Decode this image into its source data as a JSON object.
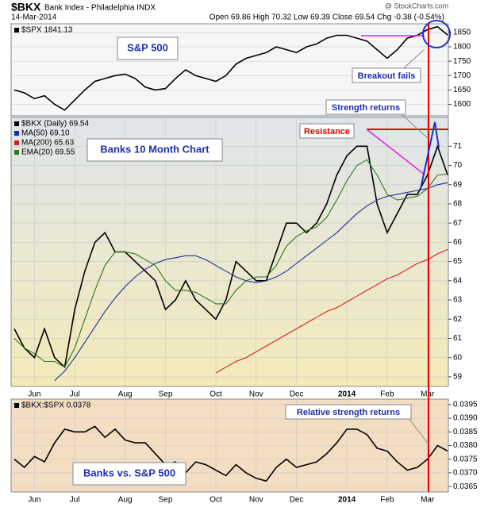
{
  "header": {
    "symbol": "$BKX",
    "name": "Bank Index - Philadelphia INDX",
    "date": "14-Mar-2014",
    "quote": "Open 69.86  High 70.32  Low 69.39  Close 69.54  Chg -0.38 (-0.54%)",
    "source": "@ StockCharts.com"
  },
  "chart_data": [
    {
      "type": "line",
      "ylim": [
        1560,
        1880
      ],
      "yticks": [
        1600,
        1650,
        1700,
        1750,
        1800,
        1850
      ],
      "series": [
        {
          "name": "$SPX 1841.13",
          "color": "#000000",
          "values": [
            1650,
            1640,
            1620,
            1630,
            1600,
            1580,
            1615,
            1650,
            1680,
            1690,
            1700,
            1705,
            1690,
            1660,
            1650,
            1655,
            1690,
            1720,
            1700,
            1690,
            1680,
            1700,
            1740,
            1760,
            1770,
            1780,
            1800,
            1790,
            1780,
            1800,
            1810,
            1830,
            1840,
            1840,
            1830,
            1820,
            1790,
            1760,
            1790,
            1830,
            1840,
            1860,
            1870,
            1841.13
          ]
        }
      ],
      "annotations": [
        "S&P 500",
        "Breakout fails"
      ]
    },
    {
      "type": "line",
      "ylim": [
        58.5,
        72.5
      ],
      "yticks": [
        59,
        60,
        61,
        62,
        63,
        64,
        65,
        66,
        67,
        68,
        69,
        70,
        71
      ],
      "categories": [
        null,
        null,
        "Jun",
        null,
        null,
        null,
        "Jul",
        null,
        null,
        null,
        null,
        "Aug",
        null,
        null,
        null,
        "Sep",
        null,
        null,
        null,
        null,
        "Oct",
        null,
        null,
        null,
        "Nov",
        null,
        null,
        null,
        "Dec",
        null,
        null,
        null,
        null,
        "2014",
        null,
        null,
        null,
        "Feb",
        null,
        null,
        null,
        "Mar",
        null,
        null
      ],
      "series": [
        {
          "name": "$BKX (Daily) 69.54",
          "color": "#000000",
          "values": [
            61.5,
            60.5,
            60,
            61.5,
            60,
            59.5,
            62.5,
            64.5,
            66,
            66.5,
            65.5,
            65.5,
            65,
            64.5,
            64,
            62.5,
            63,
            64,
            63,
            62.5,
            62,
            63,
            65,
            64.5,
            64,
            64,
            65.5,
            67,
            67,
            66.5,
            67,
            68,
            69.5,
            70.5,
            71,
            71,
            68,
            66.5,
            67.5,
            68.5,
            68.5,
            69.5,
            71,
            69.5
          ]
        },
        {
          "name": "MA(50) 69.10",
          "color": "#1f2fa0",
          "values": [
            null,
            null,
            null,
            null,
            58.8,
            59.3,
            60,
            60.8,
            61.6,
            62.4,
            63.1,
            63.7,
            64.2,
            64.6,
            64.9,
            65.1,
            65.2,
            65.3,
            65.3,
            65.1,
            64.8,
            64.5,
            64.2,
            64.0,
            63.9,
            64.0,
            64.2,
            64.5,
            64.9,
            65.3,
            65.7,
            66.1,
            66.5,
            67.0,
            67.5,
            67.9,
            68.2,
            68.4,
            68.5,
            68.6,
            68.7,
            68.8,
            69.0,
            69.1
          ]
        },
        {
          "name": "MA(200) 65.63",
          "color": "#d62020",
          "values": [
            null,
            null,
            null,
            null,
            null,
            null,
            null,
            null,
            null,
            null,
            null,
            null,
            null,
            null,
            null,
            null,
            null,
            null,
            null,
            null,
            59.2,
            59.5,
            59.8,
            60.0,
            60.3,
            60.6,
            60.9,
            61.2,
            61.5,
            61.8,
            62.1,
            62.4,
            62.6,
            62.9,
            63.2,
            63.5,
            63.8,
            64.1,
            64.3,
            64.6,
            64.9,
            65.1,
            65.4,
            65.63
          ]
        },
        {
          "name": "EMA(20) 69.55",
          "color": "#2a7a1c",
          "values": [
            61,
            60.5,
            60.2,
            59.8,
            59.8,
            59.5,
            60.5,
            62,
            63.5,
            64.8,
            65.5,
            65.5,
            65.4,
            65.1,
            64.8,
            64,
            63.5,
            63.5,
            63.4,
            63.1,
            62.8,
            62.8,
            63.5,
            64,
            64.2,
            64.2,
            64.8,
            65.8,
            66.3,
            66.6,
            66.8,
            67.3,
            68.2,
            69.2,
            70,
            70.3,
            69.5,
            68.5,
            68.2,
            68.3,
            68.4,
            68.8,
            69.5,
            69.55
          ]
        }
      ],
      "annotations": [
        "Banks 10 Month Chart",
        "Resistance",
        "Strength returns"
      ]
    },
    {
      "type": "line",
      "ylim": [
        0.0363,
        0.0397
      ],
      "yticks": [
        0.0365,
        {
          "value": 0.037,
          "label": "0.0370"
        },
        0.0375,
        {
          "value": 0.038,
          "label": "0.0380"
        },
        0.0385,
        {
          "value": 0.039,
          "label": "0.0390"
        },
        0.0395
      ],
      "categories": [
        null,
        null,
        "Jun",
        null,
        null,
        null,
        "Jul",
        null,
        null,
        null,
        null,
        "Aug",
        null,
        null,
        null,
        "Sep",
        null,
        null,
        null,
        null,
        "Oct",
        null,
        null,
        null,
        "Nov",
        null,
        null,
        null,
        "Dec",
        null,
        null,
        null,
        null,
        "2014",
        null,
        null,
        null,
        "Feb",
        null,
        null,
        null,
        "Mar",
        null,
        null
      ],
      "series": [
        {
          "name": "$BKX:$SPX 0.0378",
          "color": "#000000",
          "values": [
            0.0375,
            0.0372,
            0.0376,
            0.0374,
            0.0381,
            0.0386,
            0.0385,
            0.0385,
            0.0387,
            0.0383,
            0.0386,
            0.0382,
            0.0381,
            0.0381,
            0.0377,
            0.0373,
            0.0374,
            0.037,
            0.0374,
            0.0373,
            0.0371,
            0.0369,
            0.0373,
            0.037,
            0.0368,
            0.0367,
            0.0372,
            0.0375,
            0.0372,
            0.0373,
            0.0374,
            0.0377,
            0.0381,
            0.0386,
            0.0386,
            0.0384,
            0.0379,
            0.0378,
            0.0374,
            0.0371,
            0.0372,
            0.0375,
            0.038,
            0.0378
          ]
        }
      ],
      "annotations": [
        "Banks vs. S&P 500",
        "Relative strength returns"
      ]
    }
  ]
}
